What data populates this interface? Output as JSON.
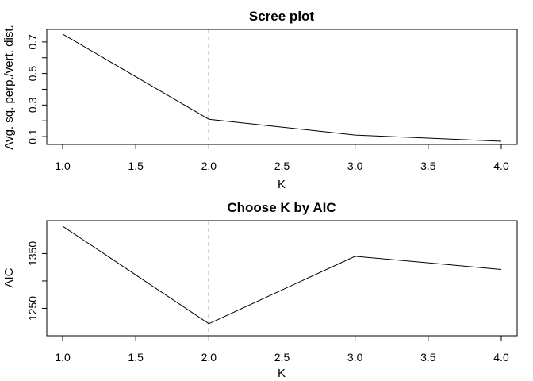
{
  "chart_data": [
    {
      "type": "line",
      "title": "Scree plot",
      "xlabel": "K",
      "ylabel": "Avg. sq. perp./vert. dist.",
      "xlim": [
        1.0,
        4.0
      ],
      "ylim": [
        0.05,
        0.78
      ],
      "x_ticks": [
        "1.0",
        "1.5",
        "2.0",
        "2.5",
        "3.0",
        "3.5",
        "4.0"
      ],
      "y_ticks": [
        "0.1",
        "0.3",
        "0.5",
        "0.7"
      ],
      "vline_x": 2.0,
      "x": [
        1,
        2,
        3,
        4
      ],
      "y": [
        0.75,
        0.21,
        0.11,
        0.07
      ]
    },
    {
      "type": "line",
      "title": "Choose K by AIC",
      "xlabel": "K",
      "ylabel": "AIC",
      "xlim": [
        1.0,
        4.0
      ],
      "ylim": [
        1200,
        1410
      ],
      "x_ticks": [
        "1.0",
        "1.5",
        "2.0",
        "2.5",
        "3.0",
        "3.5",
        "4.0"
      ],
      "y_ticks": [
        "1250",
        "1350"
      ],
      "vline_x": 2.0,
      "x": [
        1,
        2,
        3,
        4
      ],
      "y": [
        1400,
        1222,
        1345,
        1321
      ]
    }
  ]
}
